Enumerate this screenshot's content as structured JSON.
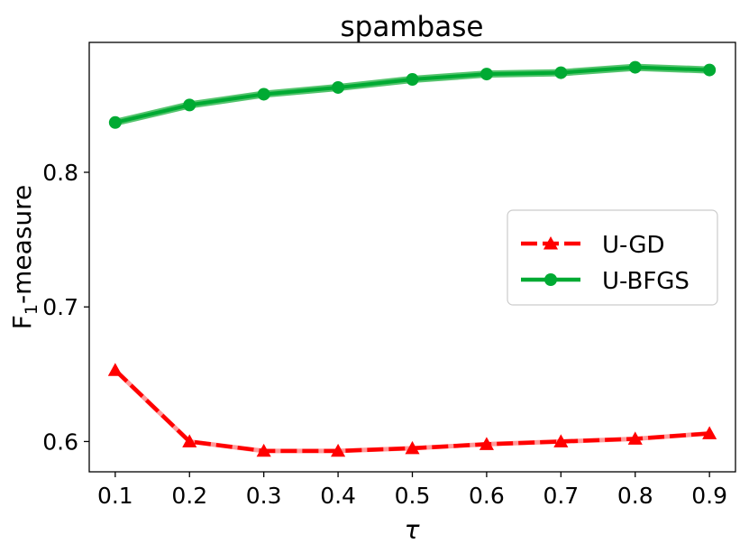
{
  "chart_data": {
    "type": "line",
    "title": "spambase",
    "xlabel": "τ",
    "ylabel_main": "F",
    "ylabel_sub": "1",
    "ylabel_rest": "-measure",
    "x": [
      0.1,
      0.2,
      0.3,
      0.4,
      0.5,
      0.6,
      0.7,
      0.8,
      0.9
    ],
    "x_tick_labels": [
      "0.1",
      "0.2",
      "0.3",
      "0.4",
      "0.5",
      "0.6",
      "0.7",
      "0.8",
      "0.9"
    ],
    "y_ticks": [
      0.6,
      0.7,
      0.8
    ],
    "y_tick_labels": [
      "0.6",
      "0.7",
      "0.8"
    ],
    "xlim": [
      0.065,
      0.935
    ],
    "ylim": [
      0.5775,
      0.8965
    ],
    "grid": false,
    "legend_position": "center-right",
    "series": [
      {
        "name": "U-GD",
        "color": "#ff0000",
        "marker": "triangle",
        "line_style": "dashed",
        "values": [
          0.653,
          0.6,
          0.593,
          0.593,
          0.595,
          0.598,
          0.6,
          0.602,
          0.606
        ]
      },
      {
        "name": "U-BFGS",
        "color": "#00aa33",
        "marker": "circle",
        "line_style": "solid",
        "values": [
          0.837,
          0.85,
          0.858,
          0.863,
          0.869,
          0.873,
          0.874,
          0.878,
          0.876
        ]
      }
    ]
  }
}
